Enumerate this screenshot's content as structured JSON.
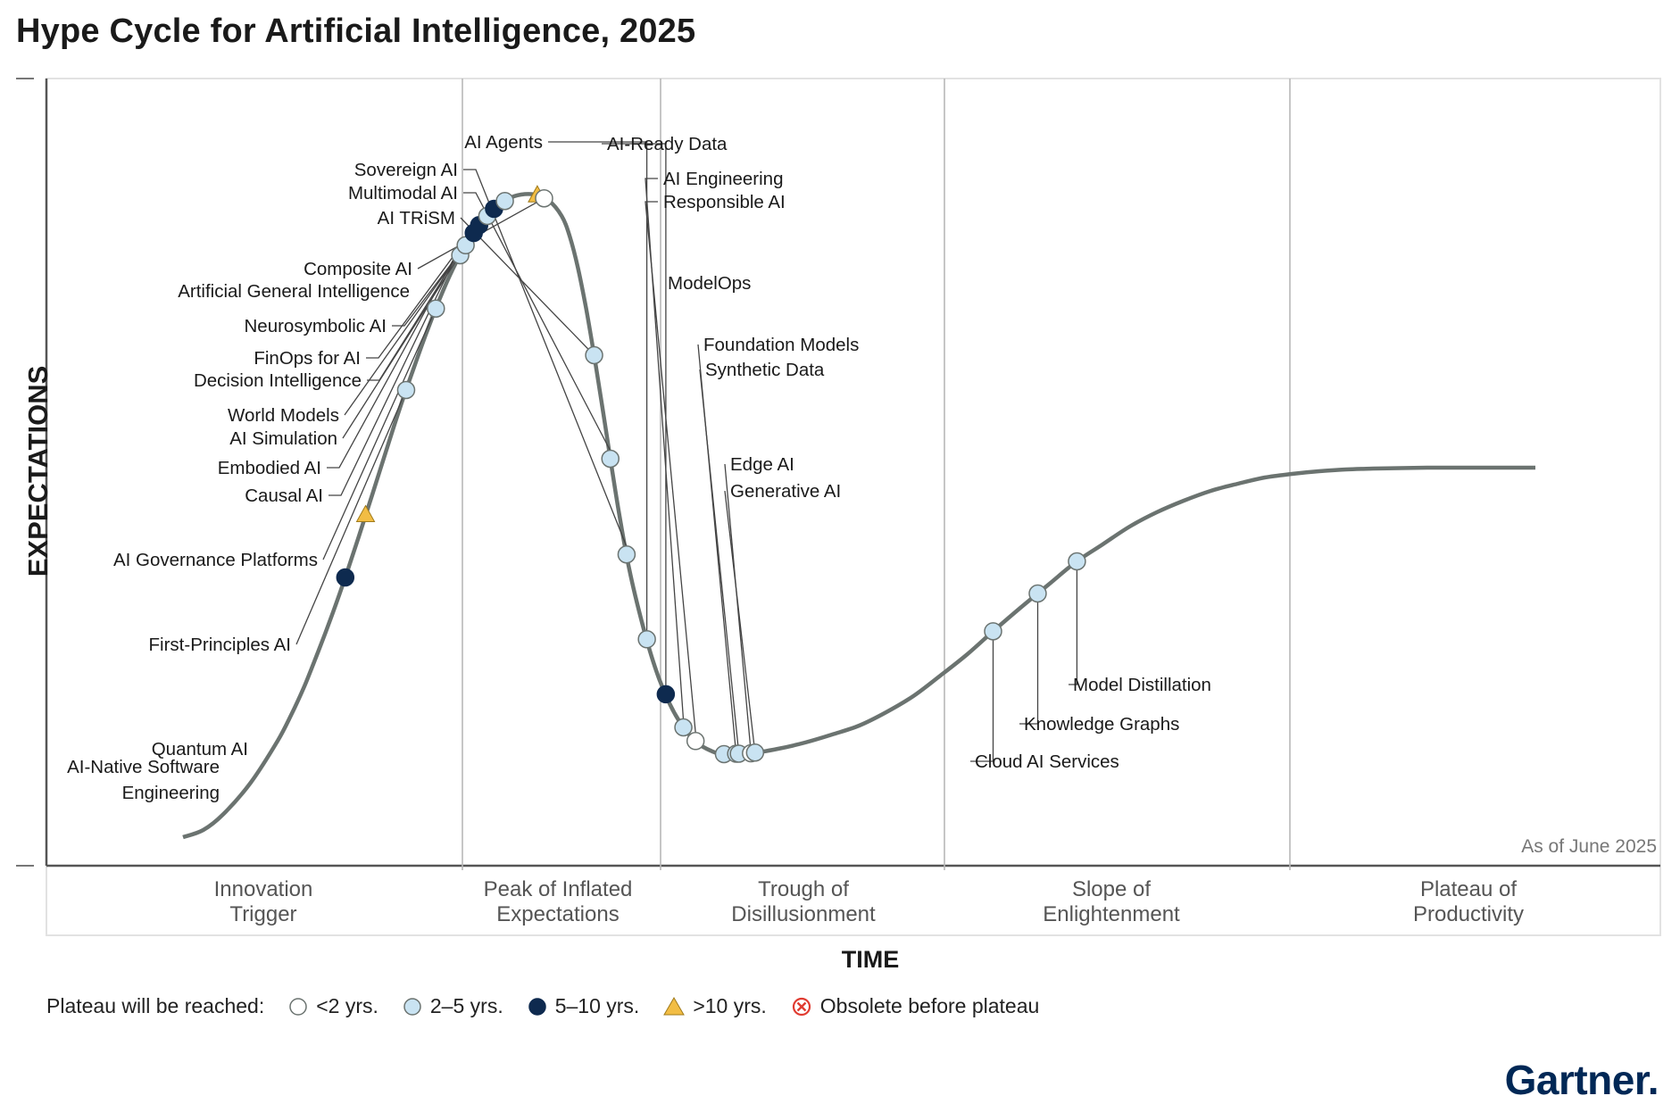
{
  "title": "Hype Cycle for Artificial Intelligence, 2025",
  "y_axis_label": "EXPECTATIONS",
  "x_axis_label": "TIME",
  "as_of": "As of June 2025",
  "logo_text": "Gartner.",
  "phases": [
    {
      "line1": "Innovation",
      "line2": "Trigger"
    },
    {
      "line1": "Peak of Inflated",
      "line2": "Expectations"
    },
    {
      "line1": "Trough of",
      "line2": "Disillusionment"
    },
    {
      "line1": "Slope of",
      "line2": "Enlightenment"
    },
    {
      "line1": "Plateau of",
      "line2": "Productivity"
    }
  ],
  "legend": {
    "title": "Plateau will be reached:",
    "items": [
      {
        "key": "lt2",
        "label": "<2 yrs."
      },
      {
        "key": "2to5",
        "label": "2–5 yrs."
      },
      {
        "key": "5to10",
        "label": "5–10 yrs."
      },
      {
        "key": "gt10",
        "label": ">10 yrs."
      },
      {
        "key": "obsolete",
        "label": "Obsolete before plateau"
      }
    ]
  },
  "colors": {
    "curve": "#6b7370",
    "lt2": "#ffffff",
    "2to5": "#c9e3f2",
    "5to10": "#0e2a4f",
    "gt10": "#f2bd44",
    "obsolete": "#e03c31",
    "logo": "#002856"
  },
  "chart_data": {
    "type": "hype-cycle",
    "items": [
      {
        "name": "AI-Native Software Engineering",
        "position": 0.12,
        "plateau": "5to10"
      },
      {
        "name": "Quantum AI",
        "position": 0.135,
        "plateau": "gt10"
      },
      {
        "name": "First-Principles AI",
        "position": 0.165,
        "plateau": "2to5"
      },
      {
        "name": "AI Governance Platforms",
        "position": 0.187,
        "plateau": "2to5"
      },
      {
        "name": "Causal AI",
        "position": 0.205,
        "plateau": "2to5"
      },
      {
        "name": "Embodied AI",
        "position": 0.209,
        "plateau": "2to5"
      },
      {
        "name": "AI Simulation",
        "position": 0.215,
        "plateau": "5to10"
      },
      {
        "name": "World Models",
        "position": 0.219,
        "plateau": "5to10"
      },
      {
        "name": "Decision Intelligence",
        "position": 0.225,
        "plateau": "2to5"
      },
      {
        "name": "FinOps for AI",
        "position": 0.23,
        "plateau": "5to10"
      },
      {
        "name": "Neurosymbolic AI",
        "position": 0.238,
        "plateau": "2to5"
      },
      {
        "name": "Artificial General Intelligence",
        "position": 0.262,
        "plateau": "gt10"
      },
      {
        "name": "Composite AI",
        "position": 0.267,
        "plateau": "lt2"
      },
      {
        "name": "AI TRiSM",
        "position": 0.304,
        "plateau": "2to5"
      },
      {
        "name": "Multimodal AI",
        "position": 0.316,
        "plateau": "2to5"
      },
      {
        "name": "Sovereign AI",
        "position": 0.328,
        "plateau": "2to5"
      },
      {
        "name": "AI Agents",
        "position": 0.343,
        "plateau": "2to5"
      },
      {
        "name": "AI-Ready Data",
        "position": 0.357,
        "plateau": "5to10"
      },
      {
        "name": "AI Engineering",
        "position": 0.37,
        "plateau": "2to5"
      },
      {
        "name": "Responsible AI",
        "position": 0.379,
        "plateau": "lt2"
      },
      {
        "name": "ModelOps",
        "position": 0.4,
        "plateau": "2to5"
      },
      {
        "name": "Foundation Models",
        "position": 0.409,
        "plateau": "2to5"
      },
      {
        "name": "Synthetic Data",
        "position": 0.411,
        "plateau": "2to5"
      },
      {
        "name": "Edge AI",
        "position": 0.42,
        "plateau": "lt2"
      },
      {
        "name": "Generative AI",
        "position": 0.423,
        "plateau": "2to5"
      },
      {
        "name": "Cloud AI Services",
        "position": 0.599,
        "plateau": "2to5"
      },
      {
        "name": "Knowledge Graphs",
        "position": 0.632,
        "plateau": "2to5"
      },
      {
        "name": "Model Distillation",
        "position": 0.661,
        "plateau": "2to5"
      }
    ]
  }
}
